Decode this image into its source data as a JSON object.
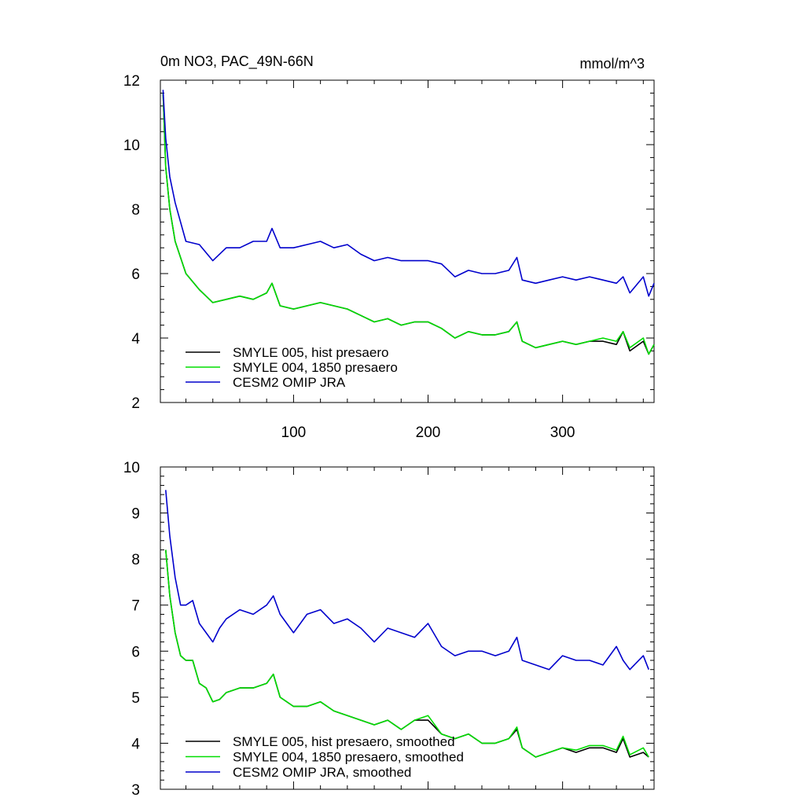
{
  "chart_data": [
    {
      "type": "line",
      "title": "0m NO3, PAC_49N-66N",
      "title_right": "mmol/m^3",
      "xlabel": "",
      "ylabel": "",
      "xlim": [
        1,
        368
      ],
      "ylim": [
        2,
        12
      ],
      "xticks": [
        100,
        200,
        300
      ],
      "xtick_labels": [
        "100",
        "200",
        "300"
      ],
      "yticks": [
        2,
        4,
        6,
        8,
        10,
        12
      ],
      "ytick_labels": [
        "2",
        "4",
        "6",
        "8",
        "10",
        "12"
      ],
      "legend_position": "bottom-left",
      "series": [
        {
          "name": "SMYLE 005, hist presaero",
          "color": "#000000",
          "x": [
            3,
            5,
            8,
            12,
            20,
            30,
            40,
            50,
            60,
            70,
            80,
            84,
            90,
            100,
            110,
            120,
            130,
            140,
            150,
            160,
            170,
            180,
            190,
            200,
            210,
            220,
            230,
            240,
            250,
            260,
            266,
            270,
            280,
            290,
            300,
            310,
            320,
            330,
            340,
            345,
            350,
            360,
            364,
            368
          ],
          "values": [
            11.6,
            9.3,
            8.0,
            7.0,
            6.0,
            5.5,
            5.1,
            5.2,
            5.3,
            5.2,
            5.4,
            5.7,
            5.0,
            4.9,
            5.0,
            5.1,
            5.0,
            4.9,
            4.7,
            4.5,
            4.6,
            4.4,
            4.5,
            4.5,
            4.3,
            4.0,
            4.2,
            4.1,
            4.1,
            4.2,
            4.5,
            3.9,
            3.7,
            3.8,
            3.9,
            3.8,
            3.9,
            3.9,
            3.8,
            4.2,
            3.6,
            3.9,
            3.5,
            3.8
          ]
        },
        {
          "name": "SMYLE 004, 1850 presaero",
          "color": "#00dd00",
          "x": [
            3,
            5,
            8,
            12,
            20,
            30,
            40,
            50,
            60,
            70,
            80,
            84,
            90,
            100,
            110,
            120,
            130,
            140,
            150,
            160,
            170,
            180,
            190,
            200,
            210,
            220,
            230,
            240,
            250,
            260,
            266,
            270,
            280,
            290,
            300,
            310,
            320,
            330,
            340,
            345,
            350,
            360,
            364,
            368
          ],
          "values": [
            11.6,
            9.3,
            8.0,
            7.0,
            6.0,
            5.5,
            5.1,
            5.2,
            5.3,
            5.2,
            5.4,
            5.7,
            5.0,
            4.9,
            5.0,
            5.1,
            5.0,
            4.9,
            4.7,
            4.5,
            4.6,
            4.4,
            4.5,
            4.5,
            4.3,
            4.0,
            4.2,
            4.1,
            4.1,
            4.2,
            4.5,
            3.9,
            3.7,
            3.8,
            3.9,
            3.8,
            3.9,
            4.0,
            3.9,
            4.2,
            3.7,
            4.0,
            3.5,
            3.8
          ]
        },
        {
          "name": "CESM2 OMIP JRA",
          "color": "#0000cc",
          "x": [
            3,
            5,
            8,
            12,
            20,
            30,
            40,
            50,
            60,
            70,
            80,
            84,
            90,
            100,
            110,
            120,
            130,
            140,
            150,
            160,
            170,
            180,
            190,
            200,
            210,
            220,
            230,
            240,
            250,
            260,
            266,
            270,
            280,
            290,
            300,
            310,
            320,
            330,
            340,
            345,
            350,
            360,
            364,
            368
          ],
          "values": [
            11.7,
            10.2,
            9.0,
            8.2,
            7.0,
            6.9,
            6.4,
            6.8,
            6.8,
            7.0,
            7.0,
            7.4,
            6.8,
            6.8,
            6.9,
            7.0,
            6.8,
            6.9,
            6.6,
            6.4,
            6.5,
            6.4,
            6.4,
            6.4,
            6.3,
            5.9,
            6.1,
            6.0,
            6.0,
            6.1,
            6.5,
            5.8,
            5.7,
            5.8,
            5.9,
            5.8,
            5.9,
            5.8,
            5.7,
            5.9,
            5.4,
            5.9,
            5.3,
            5.7
          ]
        }
      ]
    },
    {
      "type": "line",
      "title": "",
      "xlabel": "",
      "ylabel": "",
      "xlim": [
        1,
        368
      ],
      "ylim": [
        3,
        10
      ],
      "xticks": [
        100,
        200,
        300
      ],
      "yticks": [
        3,
        4,
        5,
        6,
        7,
        8,
        9,
        10
      ],
      "ytick_labels": [
        "3",
        "4",
        "5",
        "6",
        "7",
        "8",
        "9",
        "10"
      ],
      "legend_position": "bottom-left",
      "series": [
        {
          "name": "SMYLE 005, hist presaero, smoothed",
          "color": "#000000",
          "x": [
            5,
            8,
            12,
            16,
            20,
            25,
            30,
            35,
            40,
            45,
            50,
            60,
            70,
            80,
            85,
            90,
            100,
            110,
            120,
            130,
            140,
            150,
            160,
            170,
            180,
            190,
            200,
            210,
            220,
            230,
            240,
            250,
            260,
            266,
            270,
            280,
            290,
            300,
            310,
            320,
            330,
            340,
            345,
            350,
            360,
            364
          ],
          "values": [
            8.2,
            7.2,
            6.4,
            5.9,
            5.8,
            5.8,
            5.3,
            5.2,
            4.9,
            4.95,
            5.1,
            5.2,
            5.2,
            5.3,
            5.5,
            5.0,
            4.8,
            4.8,
            4.9,
            4.7,
            4.6,
            4.5,
            4.4,
            4.5,
            4.3,
            4.5,
            4.5,
            4.2,
            4.1,
            4.2,
            4.0,
            4.0,
            4.1,
            4.3,
            3.9,
            3.7,
            3.8,
            3.9,
            3.8,
            3.9,
            3.9,
            3.8,
            4.1,
            3.7,
            3.8,
            3.7
          ]
        },
        {
          "name": "SMYLE 004, 1850 presaero, smoothed",
          "color": "#00dd00",
          "x": [
            5,
            8,
            12,
            16,
            20,
            25,
            30,
            35,
            40,
            45,
            50,
            60,
            70,
            80,
            85,
            90,
            100,
            110,
            120,
            130,
            140,
            150,
            160,
            170,
            180,
            190,
            200,
            210,
            220,
            230,
            240,
            250,
            260,
            266,
            270,
            280,
            290,
            300,
            310,
            320,
            330,
            340,
            345,
            350,
            360,
            364
          ],
          "values": [
            8.2,
            7.2,
            6.4,
            5.9,
            5.8,
            5.8,
            5.3,
            5.2,
            4.9,
            4.95,
            5.1,
            5.2,
            5.2,
            5.3,
            5.5,
            5.0,
            4.8,
            4.8,
            4.9,
            4.7,
            4.6,
            4.5,
            4.4,
            4.5,
            4.3,
            4.5,
            4.6,
            4.2,
            4.1,
            4.2,
            4.0,
            4.0,
            4.1,
            4.35,
            3.9,
            3.7,
            3.8,
            3.9,
            3.85,
            3.95,
            3.95,
            3.85,
            4.15,
            3.75,
            3.9,
            3.7
          ]
        },
        {
          "name": "CESM2 OMIP JRA, smoothed",
          "color": "#0000cc",
          "x": [
            5,
            8,
            12,
            16,
            20,
            25,
            30,
            35,
            40,
            45,
            50,
            60,
            70,
            80,
            85,
            90,
            100,
            110,
            120,
            130,
            140,
            150,
            160,
            170,
            180,
            190,
            200,
            210,
            220,
            230,
            240,
            250,
            260,
            266,
            270,
            280,
            290,
            300,
            310,
            320,
            330,
            340,
            345,
            350,
            360,
            364
          ],
          "values": [
            9.5,
            8.5,
            7.6,
            7.0,
            7.0,
            7.1,
            6.6,
            6.4,
            6.2,
            6.5,
            6.7,
            6.9,
            6.8,
            7.0,
            7.2,
            6.8,
            6.4,
            6.8,
            6.9,
            6.6,
            6.7,
            6.5,
            6.2,
            6.5,
            6.4,
            6.3,
            6.6,
            6.1,
            5.9,
            6.0,
            6.0,
            5.9,
            6.0,
            6.3,
            5.8,
            5.7,
            5.6,
            5.9,
            5.8,
            5.8,
            5.7,
            6.1,
            5.8,
            5.6,
            5.9,
            5.6
          ]
        }
      ]
    }
  ]
}
